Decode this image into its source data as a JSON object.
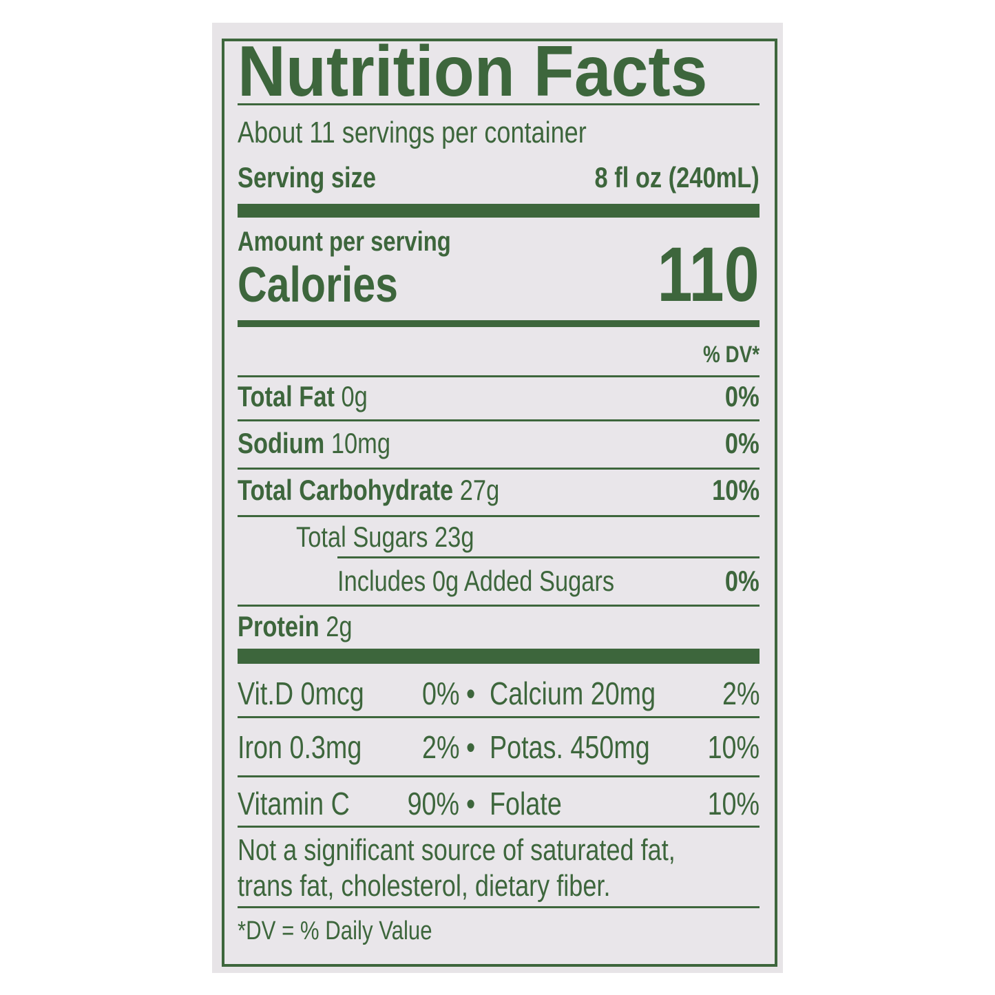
{
  "title": "Nutrition Facts",
  "servings_per_container": "About 11 servings per container",
  "serving_size": {
    "label": "Serving size",
    "value": "8 fl oz (240mL)"
  },
  "amount_per_serving": "Amount per serving",
  "calories": {
    "label": "Calories",
    "value": "110"
  },
  "dv_header": "% DV*",
  "nutrients": [
    {
      "name": "Total Fat",
      "amount": "0g",
      "dv": "0%"
    },
    {
      "name": "Sodium",
      "amount": "10mg",
      "dv": "0%"
    },
    {
      "name": "Total Carbohydrate",
      "amount": "27g",
      "dv": "10%"
    },
    {
      "name": "Total Sugars 23g",
      "amount": "",
      "dv": ""
    },
    {
      "name": "Includes 0g Added Sugars",
      "amount": "",
      "dv": "0%"
    },
    {
      "name": "Protein",
      "amount": "2g",
      "dv": ""
    }
  ],
  "vitamins": [
    {
      "left": "Vit.D 0mcg",
      "left_dv": "0%",
      "right": "Calcium 20mg",
      "right_dv": "2%"
    },
    {
      "left": "Iron 0.3mg",
      "left_dv": "2%",
      "right": "Potas. 450mg",
      "right_dv": "10%"
    },
    {
      "left": "Vitamin C",
      "left_dv": "90%",
      "right": "Folate",
      "right_dv": "10%"
    }
  ],
  "bullet": "•",
  "footnote_source": "Not a significant source of saturated fat,",
  "footnote_source_2": "trans fat, cholesterol, dietary fiber.",
  "footnote_dv": "*DV = % Daily Value",
  "colors": {
    "ink": "#3d663c",
    "background": "#e9e6ea"
  }
}
